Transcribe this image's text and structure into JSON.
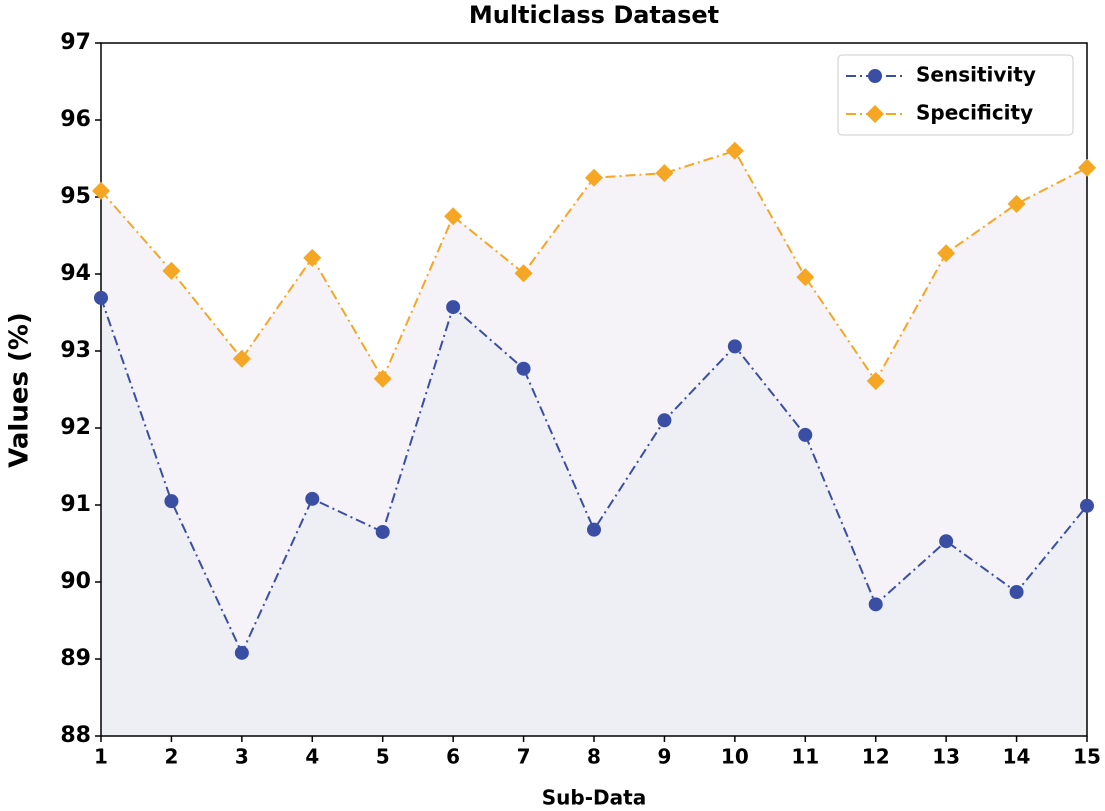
{
  "chart_data": {
    "type": "line",
    "title": "Multiclass Dataset",
    "xlabel": "Sub-Data",
    "ylabel": "Values (%)",
    "x": [
      1,
      2,
      3,
      4,
      5,
      6,
      7,
      8,
      9,
      10,
      11,
      12,
      13,
      14,
      15
    ],
    "series": [
      {
        "name": "Sensitivity",
        "color": "#3a4ea3",
        "marker": "circle",
        "values": [
          93.69,
          91.05,
          89.08,
          91.08,
          90.65,
          93.57,
          92.77,
          90.68,
          92.1,
          93.06,
          91.91,
          89.71,
          90.53,
          89.87,
          90.99
        ]
      },
      {
        "name": "Specificity",
        "color": "#f5a623",
        "marker": "diamond",
        "values": [
          95.08,
          94.04,
          92.9,
          94.21,
          92.64,
          94.75,
          94.01,
          95.25,
          95.31,
          95.6,
          93.96,
          92.61,
          94.27,
          94.91,
          95.38
        ]
      }
    ],
    "xlim": [
      1,
      15
    ],
    "xticks": [
      1,
      2,
      3,
      4,
      5,
      6,
      7,
      8,
      9,
      10,
      11,
      12,
      13,
      14,
      15
    ],
    "ylim": [
      88,
      97
    ],
    "yticks": [
      88,
      89,
      90,
      91,
      92,
      93,
      94,
      95,
      96,
      97
    ],
    "legend": "upper right"
  }
}
